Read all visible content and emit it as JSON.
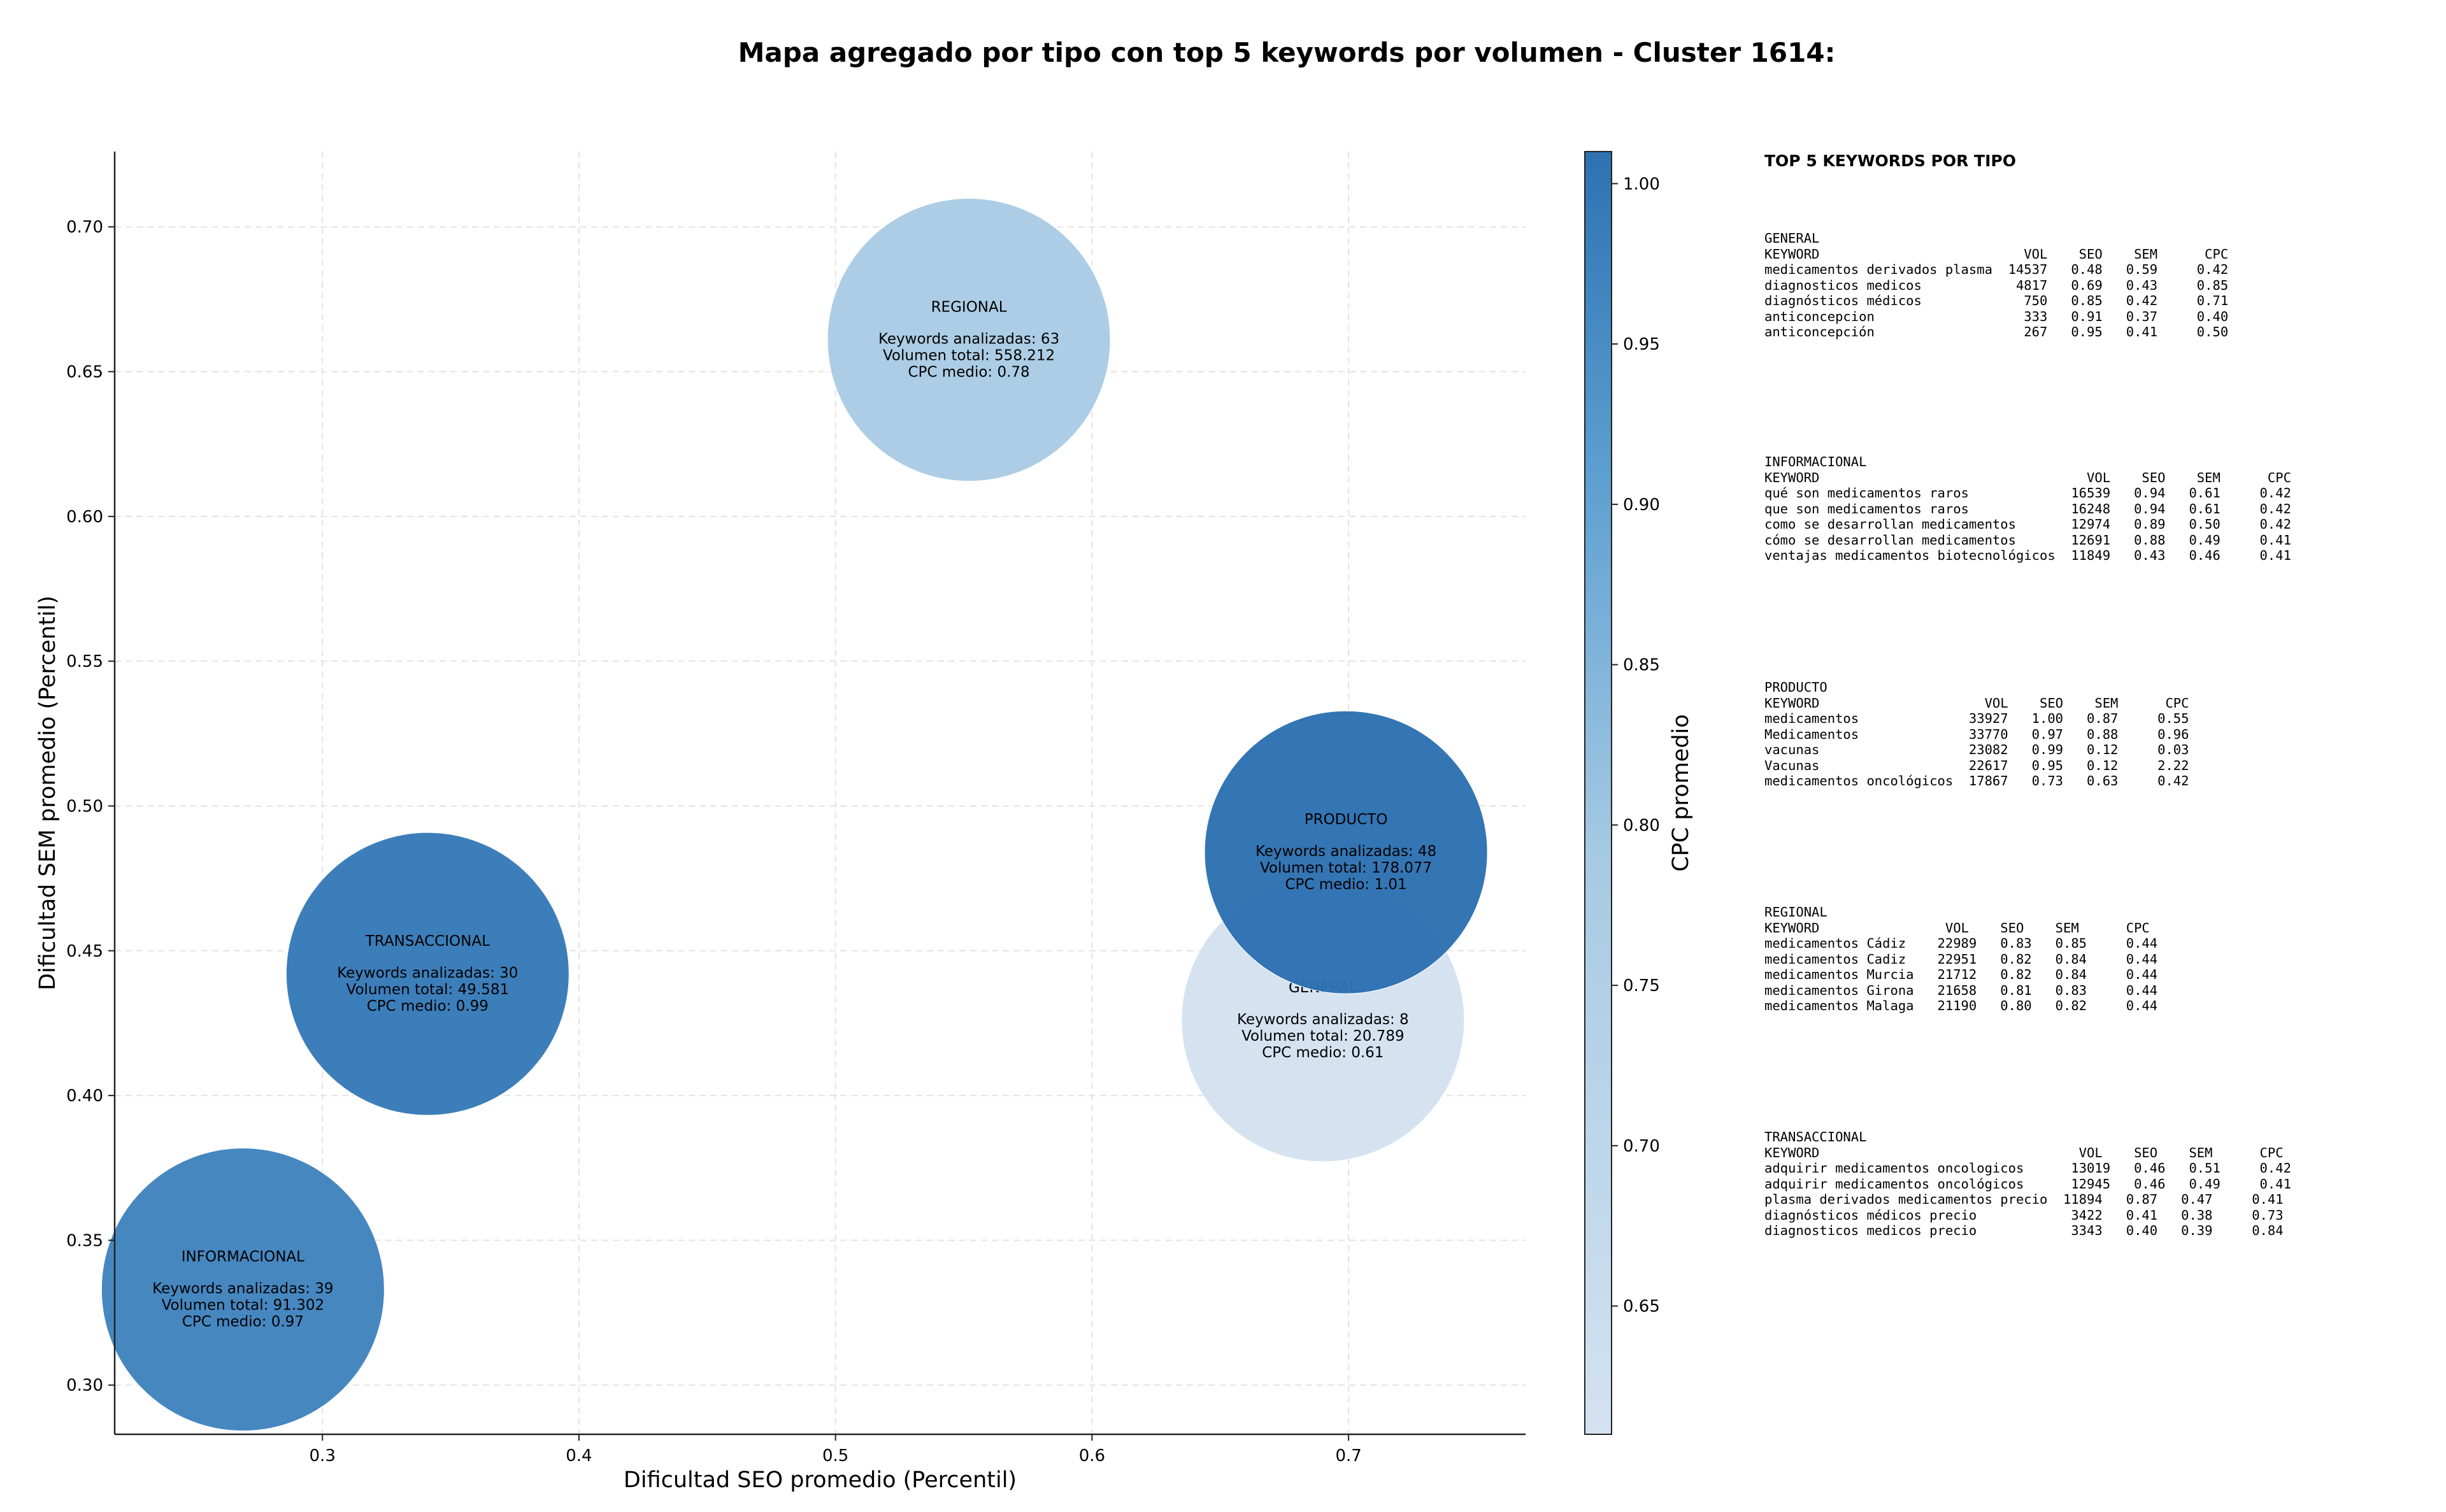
{
  "chart_data": {
    "type": "scatter",
    "title": "Mapa agregado por tipo con top 5 keywords por volumen - Cluster 1614:",
    "xlabel": "Dificultad SEO promedio (Percentil)",
    "ylabel": "Dificultad SEM promedio (Percentil)",
    "colorbar_label": "CPC promedio",
    "xlim": [
      0.219,
      0.769
    ],
    "ylim": [
      0.283,
      0.726
    ],
    "xticks": [
      0.3,
      0.4,
      0.5,
      0.6,
      0.7
    ],
    "xtick_labels": [
      "0.3",
      "0.4",
      "0.5",
      "0.6",
      "0.7"
    ],
    "yticks": [
      0.3,
      0.35,
      0.4,
      0.45,
      0.5,
      0.55,
      0.6,
      0.65,
      0.7
    ],
    "ytick_labels": [
      "0.30",
      "0.35",
      "0.40",
      "0.45",
      "0.50",
      "0.55",
      "0.60",
      "0.65",
      "0.70"
    ],
    "colorbar_range": [
      0.61,
      1.01
    ],
    "colorbar_ticks": [
      0.65,
      0.7,
      0.75,
      0.8,
      0.85,
      0.9,
      0.95,
      1.0
    ],
    "colorbar_tick_labels": [
      "0.65",
      "0.70",
      "0.75",
      "0.80",
      "0.85",
      "0.90",
      "0.95",
      "1.00"
    ],
    "grid": true,
    "points": [
      {
        "tipo": "GENERAL",
        "x": 0.69,
        "y": 0.426,
        "cpc": 0.61,
        "lines": [
          "Keywords analizadas: 8",
          "Volumen total: 20.789",
          "CPC medio: 0.61"
        ]
      },
      {
        "tipo": "REGIONAL",
        "x": 0.552,
        "y": 0.661,
        "cpc": 0.78,
        "lines": [
          "Keywords analizadas: 63",
          "Volumen total: 558.212",
          "CPC medio: 0.78"
        ]
      },
      {
        "tipo": "TRANSACCIONAL",
        "x": 0.341,
        "y": 0.442,
        "cpc": 0.99,
        "lines": [
          "Keywords analizadas: 30",
          "Volumen total: 49.581",
          "CPC medio: 0.99"
        ]
      },
      {
        "tipo": "INFORMACIONAL",
        "x": 0.269,
        "y": 0.333,
        "cpc": 0.97,
        "lines": [
          "Keywords analizadas: 39",
          "Volumen total: 91.302",
          "CPC medio: 0.97"
        ]
      },
      {
        "tipo": "PRODUCTO",
        "x": 0.699,
        "y": 0.484,
        "cpc": 1.01,
        "lines": [
          "Keywords analizadas: 48",
          "Volumen total: 178.077",
          "CPC medio: 1.01"
        ]
      }
    ],
    "colors": {
      "low": "#d4e2f1",
      "mid": "#8dbfdd",
      "high": "#2d71b2",
      "grid": "#e3e3e3"
    }
  },
  "side_panel": {
    "title": "TOP 5 KEYWORDS POR TIPO",
    "blocks": [
      {
        "name": "GENERAL",
        "lines": [
          "GENERAL",
          "KEYWORD                          VOL    SEO    SEM      CPC",
          "medicamentos derivados plasma  14537   0.48   0.59     0.42",
          "diagnosticos medicos            4817   0.69   0.43     0.85",
          "diagnósticos médicos             750   0.85   0.42     0.71",
          "anticoncepcion                   333   0.91   0.37     0.40",
          "anticoncepción                   267   0.95   0.41     0.50"
        ]
      },
      {
        "name": "INFORMACIONAL",
        "lines": [
          "INFORMACIONAL",
          "KEYWORD                                  VOL    SEO    SEM      CPC",
          "qué son medicamentos raros             16539   0.94   0.61     0.42",
          "que son medicamentos raros             16248   0.94   0.61     0.42",
          "como se desarrollan medicamentos       12974   0.89   0.50     0.42",
          "cómo se desarrollan medicamentos       12691   0.88   0.49     0.41",
          "ventajas medicamentos biotecnológicos  11849   0.43   0.46     0.41"
        ]
      },
      {
        "name": "PRODUCTO",
        "lines": [
          "PRODUCTO",
          "KEYWORD                     VOL    SEO    SEM      CPC",
          "medicamentos              33927   1.00   0.87     0.55",
          "Medicamentos              33770   0.97   0.88     0.96",
          "vacunas                   23082   0.99   0.12     0.03",
          "Vacunas                   22617   0.95   0.12     2.22",
          "medicamentos oncológicos  17867   0.73   0.63     0.42"
        ]
      },
      {
        "name": "REGIONAL",
        "lines": [
          "REGIONAL",
          "KEYWORD                VOL    SEO    SEM      CPC",
          "medicamentos Cádiz    22989   0.83   0.85     0.44",
          "medicamentos Cadiz    22951   0.82   0.84     0.44",
          "medicamentos Murcia   21712   0.82   0.84     0.44",
          "medicamentos Girona   21658   0.81   0.83     0.44",
          "medicamentos Malaga   21190   0.80   0.82     0.44"
        ]
      },
      {
        "name": "TRANSACCIONAL",
        "lines": [
          "TRANSACCIONAL",
          "KEYWORD                                 VOL    SEO    SEM      CPC",
          "adquirir medicamentos oncologicos      13019   0.46   0.51     0.42",
          "adquirir medicamentos oncológicos      12945   0.46   0.49     0.41",
          "plasma derivados medicamentos precio  11894   0.87   0.47     0.41",
          "diagnósticos médicos precio            3422   0.41   0.38     0.73",
          "diagnosticos medicos precio            3343   0.40   0.39     0.84"
        ]
      }
    ]
  }
}
